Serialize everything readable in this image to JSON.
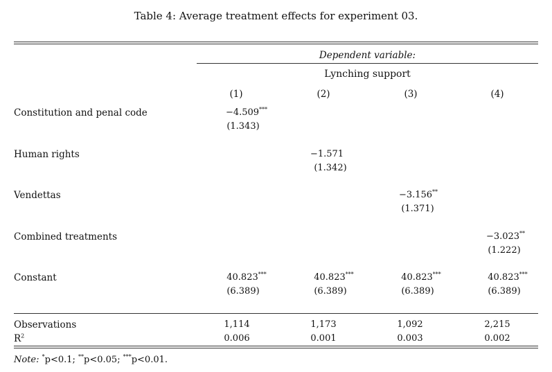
{
  "caption": "Table 4: Average treatment effects for experiment 03.",
  "header": {
    "dependent_label": "Dependent variable:",
    "dependent_name": "Lynching support",
    "columns": [
      "(1)",
      "(2)",
      "(3)",
      "(4)"
    ]
  },
  "rows": [
    {
      "label": "Constitution and penal code",
      "col": 0,
      "coef": "−4.509",
      "stars": "***",
      "se": "(1.343)"
    },
    {
      "label": "Human rights",
      "col": 1,
      "coef": "−1.571",
      "stars": "",
      "se": "(1.342)"
    },
    {
      "label": "Vendettas",
      "col": 2,
      "coef": "−3.156",
      "stars": "**",
      "se": "(1.371)"
    },
    {
      "label": "Combined treatments",
      "col": 3,
      "coef": "−3.023",
      "stars": "**",
      "se": "(1.222)"
    }
  ],
  "constant": {
    "label": "Constant",
    "values": [
      {
        "coef": "40.823",
        "stars": "***",
        "se": "(6.389)"
      },
      {
        "coef": "40.823",
        "stars": "***",
        "se": "(6.389)"
      },
      {
        "coef": "40.823",
        "stars": "***",
        "se": "(6.389)"
      },
      {
        "coef": "40.823",
        "stars": "***",
        "se": "(6.389)"
      }
    ]
  },
  "observations": {
    "label": "Observations",
    "values": [
      "1,114",
      "1,173",
      "1,092",
      "2,215"
    ]
  },
  "r2": {
    "label": "R",
    "sup": "2",
    "values": [
      "0.006",
      "0.001",
      "0.003",
      "0.002"
    ]
  },
  "note": {
    "label": "Note:",
    "s1": "*",
    "t1": "p<0.1; ",
    "s2": "**",
    "t2": "p<0.05; ",
    "s3": "***",
    "t3": "p<0.01."
  }
}
